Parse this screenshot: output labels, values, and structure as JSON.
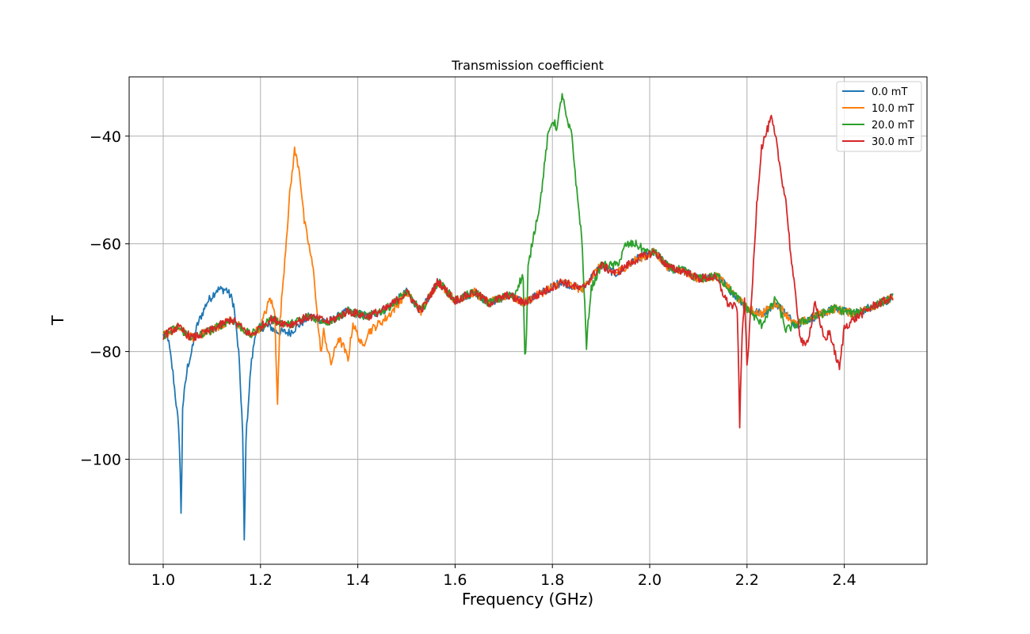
{
  "chart_data": {
    "type": "line",
    "title": "Transmission coefficient",
    "xlabel": "Frequency (GHz)",
    "ylabel": "T",
    "xlim": [
      0.93,
      2.57
    ],
    "ylim": [
      -119.5,
      -29
    ],
    "xticks": [
      1.0,
      1.2,
      1.4,
      1.6,
      1.8,
      2.0,
      2.2,
      2.4
    ],
    "xtick_labels": [
      "1.0",
      "1.2",
      "1.4",
      "1.6",
      "1.8",
      "2.0",
      "2.2",
      "2.4"
    ],
    "yticks": [
      -100,
      -80,
      -60,
      -40
    ],
    "ytick_labels": [
      "−100",
      "−80",
      "−60",
      "−40"
    ],
    "grid": true,
    "legend_position": "top-right",
    "baseline": [
      [
        1.0,
        -77
      ],
      [
        1.03,
        -75.5
      ],
      [
        1.06,
        -77.5
      ],
      [
        1.1,
        -76
      ],
      [
        1.14,
        -74
      ],
      [
        1.18,
        -77
      ],
      [
        1.22,
        -74
      ],
      [
        1.26,
        -75
      ],
      [
        1.3,
        -73.5
      ],
      [
        1.34,
        -74.5
      ],
      [
        1.38,
        -72.5
      ],
      [
        1.42,
        -73.5
      ],
      [
        1.46,
        -72
      ],
      [
        1.5,
        -69
      ],
      [
        1.53,
        -72.5
      ],
      [
        1.565,
        -67
      ],
      [
        1.6,
        -70.5
      ],
      [
        1.64,
        -69
      ],
      [
        1.67,
        -71
      ],
      [
        1.71,
        -69.5
      ],
      [
        1.74,
        -71
      ],
      [
        1.78,
        -69
      ],
      [
        1.82,
        -67
      ],
      [
        1.86,
        -68.5
      ],
      [
        1.9,
        -64
      ],
      [
        1.93,
        -65.5
      ],
      [
        1.97,
        -63
      ],
      [
        2.01,
        -61.5
      ],
      [
        2.04,
        -64.5
      ],
      [
        2.07,
        -65
      ],
      [
        2.1,
        -66.5
      ],
      [
        2.14,
        -66
      ],
      [
        2.17,
        -69
      ],
      [
        2.2,
        -72
      ],
      [
        2.23,
        -73
      ],
      [
        2.26,
        -71
      ],
      [
        2.3,
        -75
      ],
      [
        2.34,
        -73.5
      ],
      [
        2.38,
        -72
      ],
      [
        2.42,
        -73
      ],
      [
        2.46,
        -71.5
      ],
      [
        2.5,
        -70
      ]
    ],
    "series": [
      {
        "name": "0.0 mT",
        "color": "#1f77b4",
        "features": [
          [
            1.0,
            0
          ],
          [
            1.01,
            -1
          ],
          [
            1.02,
            -8
          ],
          [
            1.03,
            -17
          ],
          [
            1.034,
            -22
          ],
          [
            1.037,
            -36
          ],
          [
            1.04,
            -14
          ],
          [
            1.05,
            -6
          ],
          [
            1.06,
            -2
          ],
          [
            1.07,
            2
          ],
          [
            1.09,
            5.5
          ],
          [
            1.11,
            7
          ],
          [
            1.13,
            6
          ],
          [
            1.145,
            3
          ],
          [
            1.155,
            -5
          ],
          [
            1.163,
            -18
          ],
          [
            1.167,
            -41
          ],
          [
            1.17,
            -20
          ],
          [
            1.18,
            -6
          ],
          [
            1.19,
            0
          ],
          [
            1.2,
            0
          ],
          [
            1.23,
            -2
          ],
          [
            1.26,
            -1.5
          ],
          [
            1.3,
            0
          ]
        ]
      },
      {
        "name": "10.0 mT",
        "color": "#ff7f0e",
        "features": [
          [
            1.2,
            0
          ],
          [
            1.21,
            2
          ],
          [
            1.22,
            4
          ],
          [
            1.23,
            1
          ],
          [
            1.232,
            -7
          ],
          [
            1.235,
            -15
          ],
          [
            1.24,
            0
          ],
          [
            1.25,
            12
          ],
          [
            1.26,
            24
          ],
          [
            1.27,
            32
          ],
          [
            1.28,
            28
          ],
          [
            1.29,
            18
          ],
          [
            1.3,
            13
          ],
          [
            1.31,
            8
          ],
          [
            1.32,
            -3
          ],
          [
            1.325,
            -6
          ],
          [
            1.33,
            -2
          ],
          [
            1.345,
            -8
          ],
          [
            1.36,
            -4
          ],
          [
            1.37,
            -6
          ],
          [
            1.38,
            -9
          ],
          [
            1.39,
            -2
          ],
          [
            1.41,
            -6
          ],
          [
            1.42,
            -3
          ],
          [
            1.45,
            -2
          ],
          [
            1.48,
            -1
          ],
          [
            1.5,
            0
          ]
        ]
      },
      {
        "name": "20.0 mT",
        "color": "#2ca02c",
        "features": [
          [
            1.7,
            0
          ],
          [
            1.72,
            0
          ],
          [
            1.73,
            3
          ],
          [
            1.74,
            5
          ],
          [
            1.743,
            -10
          ],
          [
            1.746,
            -9
          ],
          [
            1.75,
            6
          ],
          [
            1.76,
            11
          ],
          [
            1.775,
            17
          ],
          [
            1.79,
            28
          ],
          [
            1.8,
            31
          ],
          [
            1.81,
            29
          ],
          [
            1.82,
            35
          ],
          [
            1.83,
            30
          ],
          [
            1.84,
            28
          ],
          [
            1.85,
            18
          ],
          [
            1.86,
            10
          ],
          [
            1.865,
            0
          ],
          [
            1.87,
            -12
          ],
          [
            1.875,
            -6
          ],
          [
            1.88,
            -2
          ],
          [
            1.9,
            0
          ],
          [
            1.94,
            2
          ],
          [
            1.95,
            4
          ],
          [
            1.97,
            3
          ],
          [
            2.0,
            0
          ],
          [
            2.2,
            0
          ],
          [
            2.23,
            -2
          ],
          [
            2.26,
            1
          ],
          [
            2.28,
            -3
          ],
          [
            2.3,
            0
          ],
          [
            2.5,
            0
          ]
        ]
      },
      {
        "name": "30.0 mT",
        "color": "#d62728",
        "features": [
          [
            2.13,
            0
          ],
          [
            2.16,
            -3
          ],
          [
            2.18,
            -2
          ],
          [
            2.185,
            -23
          ],
          [
            2.19,
            -6
          ],
          [
            2.195,
            2
          ],
          [
            2.2,
            -11
          ],
          [
            2.21,
            3
          ],
          [
            2.22,
            20
          ],
          [
            2.23,
            31
          ],
          [
            2.24,
            33
          ],
          [
            2.25,
            35
          ],
          [
            2.26,
            30
          ],
          [
            2.27,
            25
          ],
          [
            2.28,
            21
          ],
          [
            2.29,
            12
          ],
          [
            2.3,
            5
          ],
          [
            2.31,
            -3
          ],
          [
            2.32,
            -5
          ],
          [
            2.33,
            -2
          ],
          [
            2.34,
            3
          ],
          [
            2.35,
            -2
          ],
          [
            2.36,
            -5
          ],
          [
            2.37,
            -4
          ],
          [
            2.38,
            -8
          ],
          [
            2.39,
            -11
          ],
          [
            2.4,
            -3
          ],
          [
            2.42,
            -1
          ],
          [
            2.46,
            0
          ],
          [
            2.5,
            0
          ]
        ]
      }
    ]
  }
}
